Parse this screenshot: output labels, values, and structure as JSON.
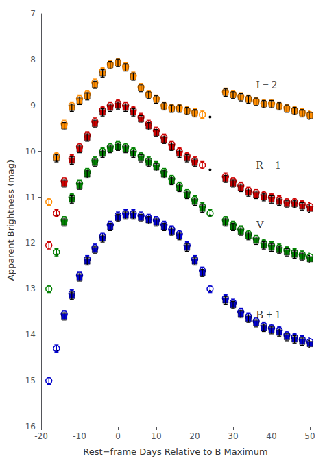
{
  "chart_data": {
    "type": "scatter",
    "xlabel": "Rest−frame Days Relative to B Maximum",
    "ylabel": "Apparent Brightness (mag)",
    "xlim": [
      -20,
      50
    ],
    "ylim": [
      16,
      7
    ],
    "xticks": [
      -20,
      -10,
      0,
      10,
      20,
      30,
      40,
      50
    ],
    "yticks": [
      7,
      8,
      9,
      10,
      11,
      12,
      13,
      14,
      15,
      16
    ],
    "grid": false,
    "series": [
      {
        "marker": "circle",
        "color": "#FF8C00",
        "error": 0.08,
        "x": [
          -18,
          -16,
          -14,
          -12,
          -10,
          -8,
          -6,
          -4,
          -2,
          0,
          2,
          4,
          6,
          8,
          10,
          12,
          14,
          16,
          18,
          20,
          22,
          28,
          30,
          32,
          34,
          36,
          38,
          40,
          42,
          44,
          46,
          48,
          50
        ],
        "values": [
          11.1,
          10.1,
          9.4,
          9.0,
          8.85,
          8.75,
          8.5,
          8.25,
          8.1,
          8.05,
          8.15,
          8.35,
          8.6,
          8.75,
          8.85,
          9.0,
          9.05,
          9.05,
          9.1,
          9.15,
          9.2,
          8.7,
          8.75,
          8.8,
          8.85,
          8.9,
          8.95,
          8.95,
          9.0,
          9.05,
          9.1,
          9.15,
          9.2
        ]
      },
      {
        "marker": "square",
        "color": "#FF8C00",
        "error": 0.08,
        "x": [
          -16,
          -14,
          -12,
          -10,
          -8,
          -6,
          -4,
          -2,
          0,
          2,
          4,
          6,
          8,
          10,
          12,
          14,
          16,
          18,
          20,
          28,
          30,
          32,
          34,
          36,
          38,
          40,
          42,
          44,
          46,
          48,
          50
        ],
        "values": [
          10.15,
          9.45,
          9.05,
          8.9,
          8.8,
          8.55,
          8.3,
          8.12,
          8.07,
          8.17,
          8.37,
          8.62,
          8.77,
          8.87,
          9.02,
          9.07,
          9.07,
          9.12,
          9.17,
          8.72,
          8.77,
          8.82,
          8.87,
          8.92,
          8.97,
          8.97,
          9.02,
          9.07,
          9.12,
          9.17,
          9.22
        ]
      },
      {
        "marker": "dot",
        "color": "#000000",
        "x": [
          -16,
          -10,
          -6,
          0,
          10,
          20,
          24,
          28,
          32,
          38,
          44,
          50
        ],
        "values": [
          10.2,
          8.95,
          8.6,
          8.1,
          8.9,
          9.2,
          9.25,
          8.75,
          8.85,
          9.0,
          9.1,
          9.25
        ]
      },
      {
        "marker": "circle",
        "color": "#CC0000",
        "error": 0.08,
        "x": [
          -18,
          -16,
          -14,
          -12,
          -10,
          -8,
          -6,
          -4,
          -2,
          0,
          2,
          4,
          6,
          8,
          10,
          12,
          14,
          16,
          18,
          20,
          22,
          28,
          30,
          32,
          34,
          36,
          38,
          40,
          42,
          44,
          46,
          48,
          50
        ],
        "values": [
          12.05,
          11.35,
          10.65,
          10.15,
          9.9,
          9.65,
          9.35,
          9.1,
          9.0,
          8.95,
          9.0,
          9.1,
          9.25,
          9.4,
          9.55,
          9.7,
          9.85,
          10.0,
          10.1,
          10.2,
          10.3,
          10.55,
          10.65,
          10.75,
          10.85,
          10.9,
          10.95,
          11.0,
          11.05,
          11.1,
          11.1,
          11.15,
          11.2
        ]
      },
      {
        "marker": "square",
        "color": "#CC0000",
        "error": 0.08,
        "x": [
          -14,
          -12,
          -10,
          -8,
          -6,
          -4,
          -2,
          0,
          2,
          4,
          6,
          8,
          10,
          12,
          14,
          16,
          18,
          20,
          28,
          30,
          32,
          34,
          36,
          38,
          40,
          42,
          44,
          46,
          48,
          50
        ],
        "values": [
          10.7,
          10.2,
          9.95,
          9.7,
          9.4,
          9.15,
          9.05,
          9.0,
          9.05,
          9.15,
          9.3,
          9.45,
          9.6,
          9.75,
          9.9,
          10.05,
          10.15,
          10.25,
          10.6,
          10.7,
          10.8,
          10.9,
          10.95,
          11.0,
          11.05,
          11.1,
          11.15,
          11.15,
          11.2,
          11.25
        ]
      },
      {
        "marker": "dot",
        "color": "#000000",
        "x": [
          -16,
          -10,
          0,
          10,
          20,
          24,
          28,
          32,
          38,
          44,
          50
        ],
        "values": [
          11.4,
          9.95,
          9.0,
          9.6,
          10.25,
          10.4,
          10.6,
          10.8,
          11.0,
          11.15,
          11.25
        ]
      },
      {
        "marker": "circle",
        "color": "#008000",
        "error": 0.08,
        "x": [
          -18,
          -16,
          -14,
          -12,
          -10,
          -8,
          -6,
          -4,
          -2,
          0,
          2,
          4,
          6,
          8,
          10,
          12,
          14,
          16,
          18,
          20,
          22,
          24,
          28,
          30,
          32,
          34,
          36,
          38,
          40,
          42,
          44,
          46,
          48,
          50
        ],
        "values": [
          13.0,
          12.2,
          11.5,
          11.0,
          10.7,
          10.45,
          10.2,
          10.0,
          9.9,
          9.85,
          9.9,
          10.0,
          10.1,
          10.2,
          10.3,
          10.45,
          10.6,
          10.75,
          10.9,
          11.05,
          11.2,
          11.35,
          11.5,
          11.6,
          11.7,
          11.8,
          11.9,
          12.0,
          12.05,
          12.1,
          12.15,
          12.2,
          12.25,
          12.3
        ]
      },
      {
        "marker": "square",
        "color": "#008000",
        "error": 0.08,
        "x": [
          -14,
          -12,
          -10,
          -8,
          -6,
          -4,
          -2,
          0,
          2,
          4,
          6,
          8,
          10,
          12,
          14,
          16,
          18,
          20,
          22,
          28,
          30,
          32,
          34,
          36,
          38,
          40,
          42,
          44,
          46,
          48,
          50
        ],
        "values": [
          11.55,
          11.05,
          10.75,
          10.5,
          10.25,
          10.05,
          9.95,
          9.9,
          9.95,
          10.05,
          10.15,
          10.25,
          10.35,
          10.5,
          10.65,
          10.8,
          10.95,
          11.1,
          11.25,
          11.55,
          11.65,
          11.75,
          11.85,
          11.95,
          12.05,
          12.1,
          12.15,
          12.2,
          12.25,
          12.3,
          12.35
        ]
      },
      {
        "marker": "dot",
        "color": "#000000",
        "x": [
          -16,
          -10,
          0,
          10,
          20,
          24,
          28,
          32,
          38,
          44,
          50
        ],
        "values": [
          12.25,
          10.75,
          9.9,
          10.35,
          11.1,
          11.4,
          11.55,
          11.75,
          12.05,
          12.2,
          12.35
        ]
      },
      {
        "marker": "circle",
        "color": "#0000CC",
        "error": 0.08,
        "x": [
          -18,
          -16,
          -14,
          -12,
          -10,
          -8,
          -6,
          -4,
          -2,
          0,
          2,
          4,
          6,
          8,
          10,
          12,
          14,
          16,
          18,
          20,
          22,
          24,
          28,
          30,
          32,
          34,
          36,
          38,
          40,
          42,
          44,
          46,
          48,
          50
        ],
        "values": [
          15.0,
          14.3,
          13.55,
          13.1,
          12.7,
          12.35,
          12.1,
          11.85,
          11.6,
          11.4,
          11.35,
          11.35,
          11.4,
          11.45,
          11.5,
          11.6,
          11.7,
          11.8,
          12.05,
          12.35,
          12.6,
          13.0,
          13.2,
          13.3,
          13.5,
          13.6,
          13.7,
          13.8,
          13.85,
          13.9,
          14.0,
          14.05,
          14.1,
          14.15
        ]
      },
      {
        "marker": "square",
        "color": "#0000CC",
        "error": 0.08,
        "x": [
          -14,
          -12,
          -10,
          -8,
          -6,
          -4,
          -2,
          0,
          2,
          4,
          6,
          8,
          10,
          12,
          14,
          16,
          18,
          20,
          22,
          28,
          30,
          32,
          34,
          36,
          38,
          40,
          42,
          44,
          46,
          48,
          50
        ],
        "values": [
          13.6,
          13.15,
          12.75,
          12.4,
          12.15,
          11.9,
          11.65,
          11.45,
          11.4,
          11.4,
          11.45,
          11.5,
          11.55,
          11.65,
          11.75,
          11.85,
          12.1,
          12.4,
          12.65,
          13.25,
          13.35,
          13.55,
          13.65,
          13.75,
          13.85,
          13.9,
          13.95,
          14.05,
          14.1,
          14.15,
          14.2
        ]
      },
      {
        "marker": "dot",
        "color": "#000000",
        "x": [
          -16,
          -10,
          0,
          10,
          20,
          24,
          28,
          32,
          38,
          44,
          50
        ],
        "values": [
          14.35,
          12.75,
          11.45,
          11.55,
          12.4,
          13.05,
          13.25,
          13.55,
          13.85,
          14.05,
          14.2
        ]
      }
    ],
    "annotations": [
      {
        "text": "I − 2",
        "x": 36,
        "y": 8.55
      },
      {
        "text": "R − 1",
        "x": 36,
        "y": 10.3
      },
      {
        "text": "V",
        "x": 36,
        "y": 11.6
      },
      {
        "text": "B + 1",
        "x": 36,
        "y": 13.55
      }
    ]
  }
}
